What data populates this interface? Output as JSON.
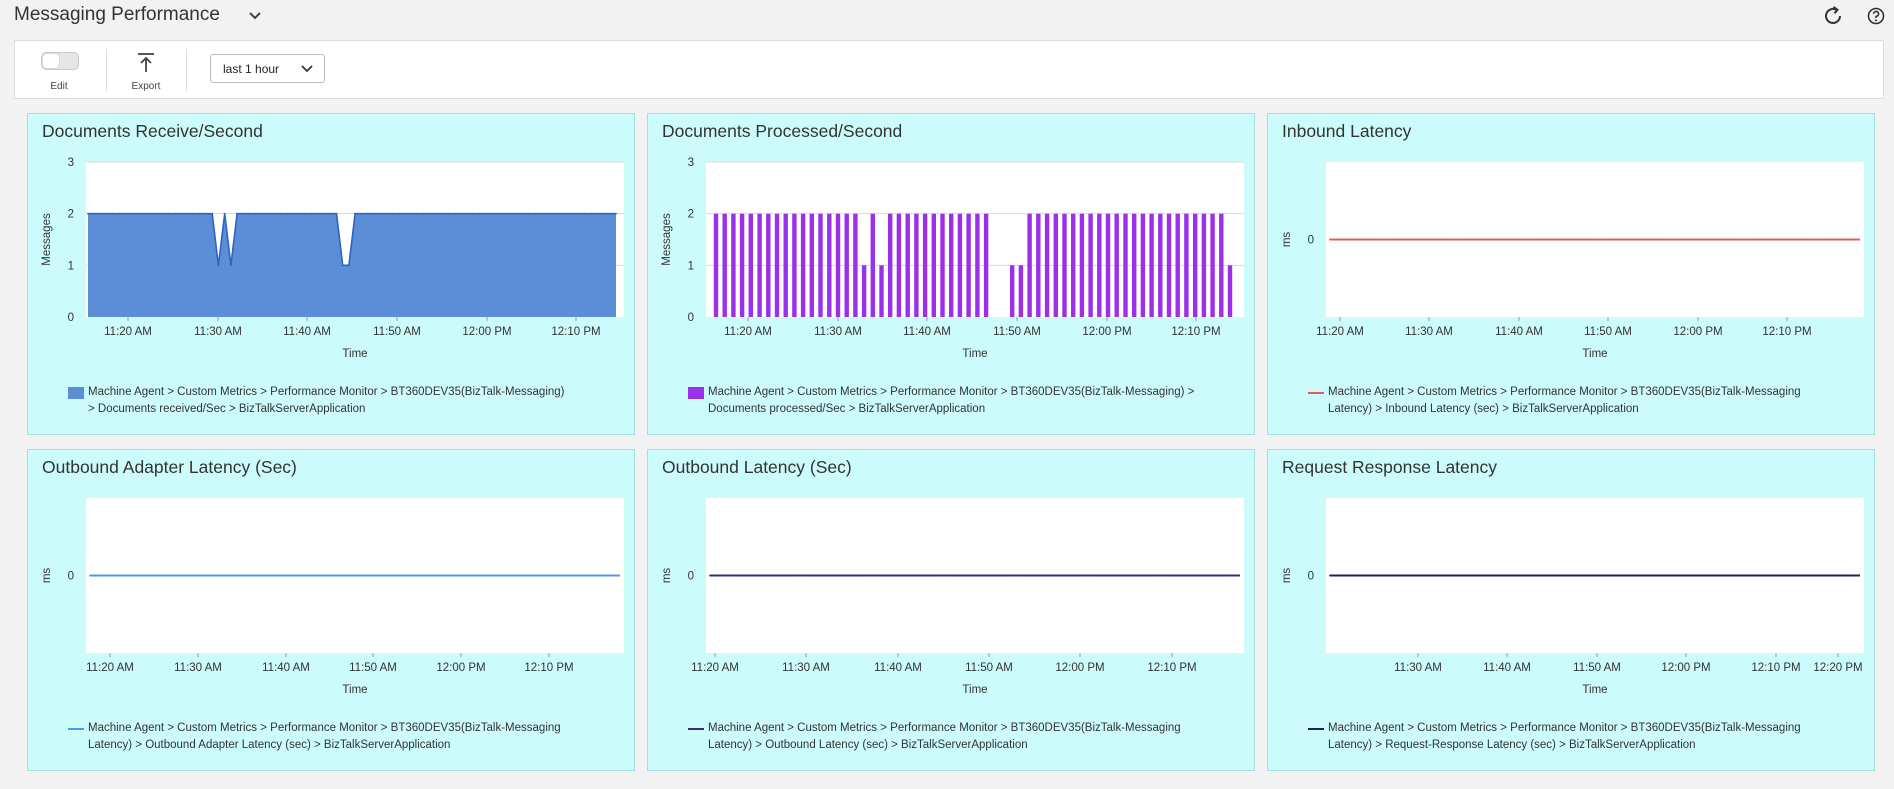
{
  "page": {
    "title": "Messaging Performance",
    "icons": {
      "title_dropdown": "chevron-down-icon",
      "refresh": "refresh-icon",
      "help": "help-icon"
    }
  },
  "toolbar": {
    "edit_label": "Edit",
    "export_label": "Export",
    "time_range": "last 1 hour",
    "icons": {
      "edit": "toggle-switch-icon",
      "export": "upload-icon",
      "range": "chevron-down-icon"
    }
  },
  "panels": [
    {
      "title": "Documents Receive/Second",
      "legend": [
        "Machine Agent > Custom Metrics > Performance Monitor > BT360DEV35(BizTalk-Messaging)",
        "> Documents received/Sec > BizTalkServerApplication"
      ]
    },
    {
      "title": "Documents Processed/Second",
      "legend": [
        "Machine Agent > Custom Metrics > Performance Monitor > BT360DEV35(BizTalk-Messaging) >",
        "Documents processed/Sec > BizTalkServerApplication"
      ]
    },
    {
      "title": "Inbound Latency",
      "legend": [
        "Machine Agent > Custom Metrics > Performance Monitor > BT360DEV35(BizTalk-Messaging",
        "Latency) > Inbound Latency (sec) > BizTalkServerApplication"
      ]
    },
    {
      "title": "Outbound Adapter Latency (Sec)",
      "legend": [
        "Machine Agent > Custom Metrics > Performance Monitor > BT360DEV35(BizTalk-Messaging",
        "Latency) > Outbound Adapter Latency (sec) > BizTalkServerApplication"
      ]
    },
    {
      "title": "Outbound Latency (Sec)",
      "legend": [
        "Machine Agent > Custom Metrics > Performance Monitor > BT360DEV35(BizTalk-Messaging",
        "Latency) > Outbound Latency (sec) > BizTalkServerApplication"
      ]
    },
    {
      "title": "Request Response Latency",
      "legend": [
        "Machine Agent > Custom Metrics > Performance Monitor > BT360DEV35(BizTalk-Messaging",
        "Latency) > Request-Response Latency (sec) > BizTalkServerApplication"
      ]
    }
  ],
  "chart_data": [
    {
      "type": "area",
      "title": "Documents Receive/Second",
      "xlabel": "Time",
      "ylabel": "Messages",
      "ylim": [
        0,
        3
      ],
      "yticks": [
        0,
        1,
        2,
        3
      ],
      "xlim": [
        "11:13",
        "12:13"
      ],
      "xticks": [
        "11:20 AM",
        "11:30 AM",
        "11:40 AM",
        "11:50 AM",
        "12:00 PM",
        "12:10 PM"
      ],
      "color": "#5b8ed6",
      "line_color": "#2b64c3",
      "grid": true,
      "legend_position": "bottom",
      "series": [
        {
          "x_start": "11:13",
          "x_step_minutes": 1,
          "values": [
            2,
            2,
            2,
            2,
            2,
            2,
            2,
            2,
            2,
            2,
            2,
            2,
            2,
            2,
            2,
            2,
            2,
            2,
            2,
            2,
            2,
            1,
            2,
            1,
            2,
            2,
            2,
            2,
            2,
            2,
            2,
            2,
            2,
            2,
            2,
            2,
            2,
            2,
            2,
            2,
            2,
            1,
            1,
            2,
            2,
            2,
            2,
            2,
            2,
            2,
            2,
            2,
            2,
            2,
            2,
            2,
            2,
            2,
            2,
            2,
            2,
            2,
            2,
            2,
            2,
            2,
            2,
            2,
            2,
            2,
            2,
            2,
            2,
            2,
            2,
            2,
            2,
            2,
            2,
            2,
            2,
            2,
            2,
            2,
            2,
            2
          ]
        }
      ]
    },
    {
      "type": "bar",
      "title": "Documents Processed/Second",
      "xlabel": "Time",
      "ylabel": "Messages",
      "ylim": [
        0,
        3
      ],
      "yticks": [
        0,
        1,
        2,
        3
      ],
      "xlim": [
        "11:13",
        "12:13"
      ],
      "xticks": [
        "11:20 AM",
        "11:30 AM",
        "11:40 AM",
        "11:50 AM",
        "12:00 PM",
        "12:10 PM"
      ],
      "color": "#9b30e8",
      "grid": true,
      "legend_position": "bottom",
      "series": [
        {
          "x_start": "11:14",
          "x_step_minutes": 1,
          "values": [
            2,
            2,
            2,
            2,
            2,
            2,
            2,
            2,
            2,
            2,
            2,
            2,
            2,
            2,
            2,
            2,
            2,
            1,
            2,
            1,
            2,
            2,
            2,
            2,
            2,
            2,
            2,
            2,
            2,
            2,
            2,
            2,
            0,
            0,
            1,
            1,
            2,
            2,
            2,
            2,
            2,
            2,
            2,
            2,
            2,
            2,
            2,
            2,
            2,
            2,
            2,
            2,
            2,
            2,
            2,
            2,
            2,
            2,
            2,
            1
          ]
        }
      ]
    },
    {
      "type": "line",
      "title": "Inbound Latency",
      "xlabel": "Time",
      "ylabel": "ms",
      "yticks": [
        0
      ],
      "xticks": [
        "11:20 AM",
        "11:30 AM",
        "11:40 AM",
        "11:50 AM",
        "12:00 PM",
        "12:10 PM"
      ],
      "color": "#e8595b",
      "grid": false,
      "legend_position": "bottom",
      "series": [
        {
          "constant_value": 0
        }
      ]
    },
    {
      "type": "line",
      "title": "Outbound Adapter Latency (Sec)",
      "xlabel": "Time",
      "ylabel": "ms",
      "yticks": [
        0
      ],
      "xticks": [
        "11:20 AM",
        "11:30 AM",
        "11:40 AM",
        "11:50 AM",
        "12:00 PM",
        "12:10 PM"
      ],
      "color": "#4d9be8",
      "grid": false,
      "legend_position": "bottom",
      "series": [
        {
          "constant_value": 0
        }
      ]
    },
    {
      "type": "line",
      "title": "Outbound Latency (Sec)",
      "xlabel": "Time",
      "ylabel": "ms",
      "yticks": [
        0
      ],
      "xticks": [
        "11:20 AM",
        "11:30 AM",
        "11:40 AM",
        "11:50 AM",
        "12:00 PM",
        "12:10 PM"
      ],
      "color": "#3d2a78",
      "grid": false,
      "legend_position": "bottom",
      "series": [
        {
          "constant_value": 0
        }
      ]
    },
    {
      "type": "line",
      "title": "Request Response Latency",
      "xlabel": "Time",
      "ylabel": "ms",
      "yticks": [
        0
      ],
      "xticks": [
        "11:30 AM",
        "11:40 AM",
        "11:50 AM",
        "12:00 PM",
        "12:10 PM",
        "12:20 PM"
      ],
      "color": "#1f1f5e",
      "grid": false,
      "legend_position": "bottom",
      "series": [
        {
          "constant_value": 0
        }
      ]
    }
  ]
}
